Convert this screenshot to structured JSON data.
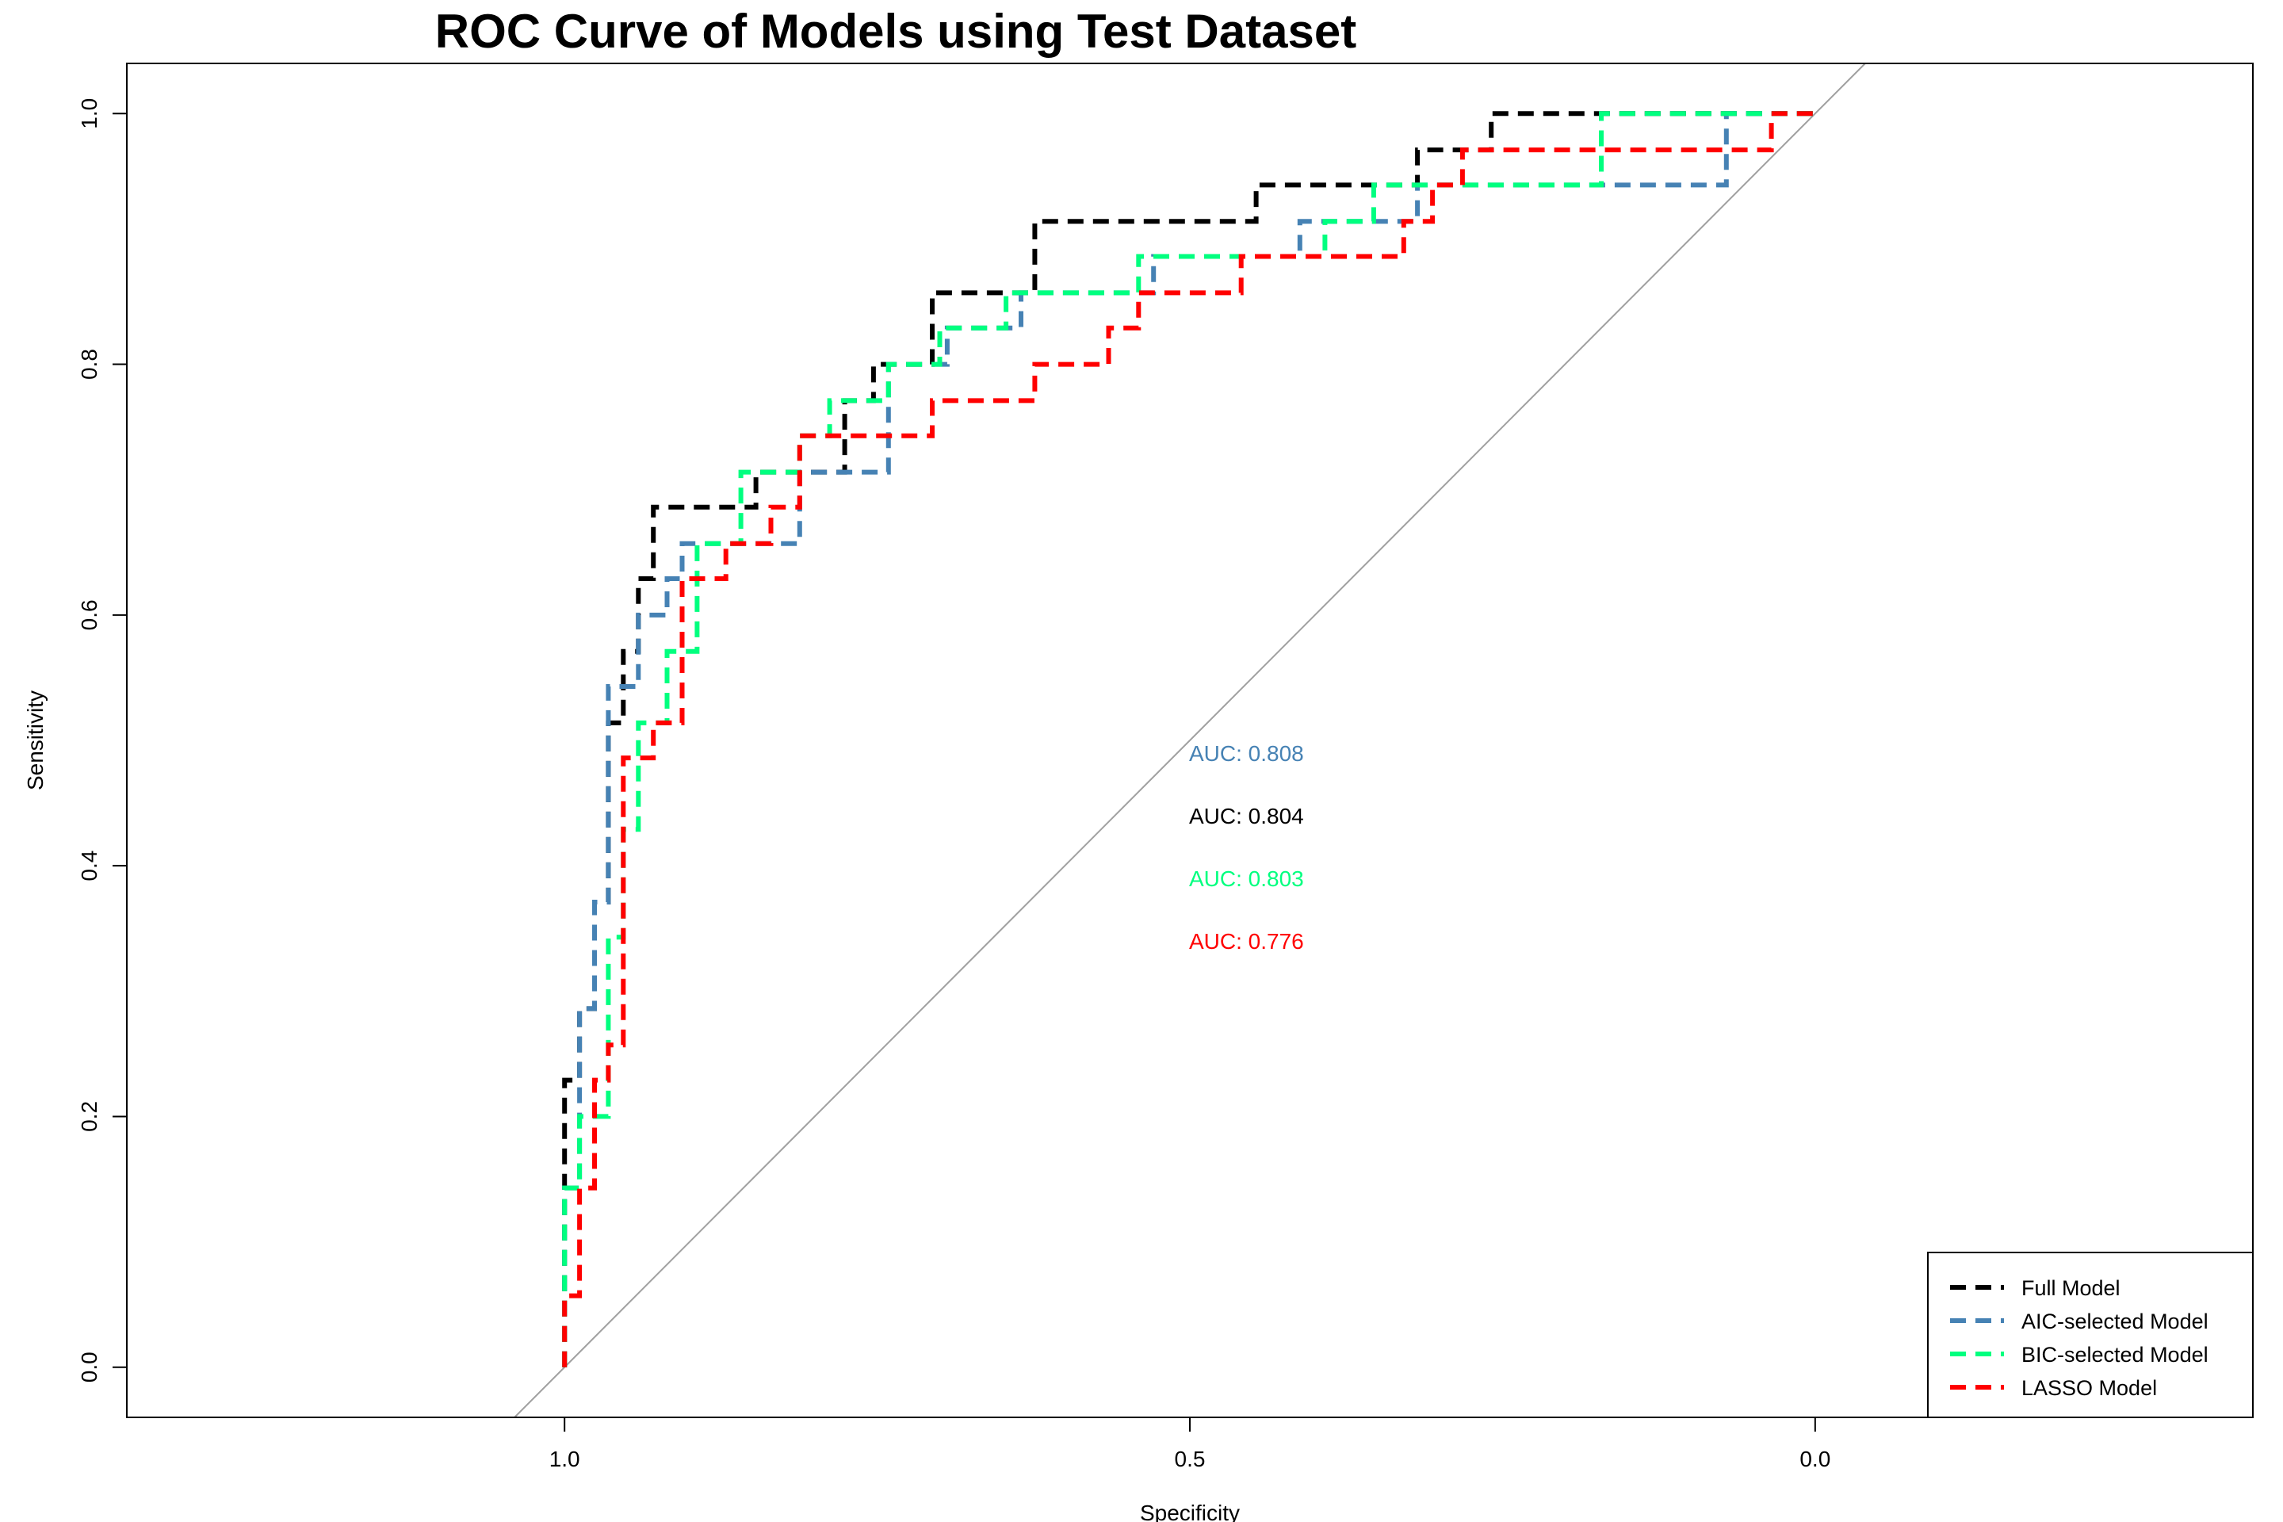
{
  "chart_data": {
    "type": "line",
    "title": "ROC Curve of Models using Test Dataset",
    "xlabel": "Specificity",
    "ylabel": "Sensitivity",
    "x_reversed": true,
    "xlim": [
      1.35,
      -0.35
    ],
    "ylim": [
      -0.04,
      1.04
    ],
    "x_ticks": [
      {
        "value": 1.0,
        "label": "1.0"
      },
      {
        "value": 0.5,
        "label": "0.5"
      },
      {
        "value": 0.0,
        "label": "0.0"
      }
    ],
    "y_ticks": [
      {
        "value": 0.0,
        "label": "0.0"
      },
      {
        "value": 0.2,
        "label": "0.2"
      },
      {
        "value": 0.4,
        "label": "0.4"
      },
      {
        "value": 0.6,
        "label": "0.6"
      },
      {
        "value": 0.8,
        "label": "0.8"
      },
      {
        "value": 1.0,
        "label": "1.0"
      }
    ],
    "reference_line": {
      "color": "#a0a0a0"
    },
    "grid": false,
    "legend_position": "bottom-right",
    "series": [
      {
        "name": "Full Model",
        "color": "#000000",
        "auc_text": "AUC: 0.804",
        "x": [
          1.0,
          1.0,
          0.988,
          0.988,
          0.976,
          0.976,
          0.965,
          0.965,
          0.953,
          0.953,
          0.941,
          0.941,
          0.929,
          0.929,
          0.847,
          0.847,
          0.776,
          0.776,
          0.753,
          0.753,
          0.706,
          0.706,
          0.624,
          0.624,
          0.576,
          0.576,
          0.447,
          0.447,
          0.318,
          0.318,
          0.259,
          0.259,
          0.0
        ],
        "y": [
          0.0,
          0.229,
          0.229,
          0.286,
          0.286,
          0.371,
          0.371,
          0.514,
          0.514,
          0.571,
          0.571,
          0.629,
          0.629,
          0.686,
          0.686,
          0.714,
          0.714,
          0.771,
          0.771,
          0.8,
          0.8,
          0.857,
          0.857,
          0.914,
          0.914,
          0.914,
          0.914,
          0.943,
          0.943,
          0.971,
          0.971,
          1.0,
          1.0
        ]
      },
      {
        "name": "AIC-selected Model",
        "color": "#4682b4",
        "auc_text": "AUC: 0.808",
        "x": [
          1.0,
          1.0,
          0.988,
          0.988,
          0.976,
          0.976,
          0.965,
          0.965,
          0.941,
          0.941,
          0.918,
          0.918,
          0.906,
          0.906,
          0.812,
          0.812,
          0.741,
          0.741,
          0.694,
          0.694,
          0.635,
          0.635,
          0.529,
          0.529,
          0.412,
          0.412,
          0.318,
          0.318,
          0.071,
          0.071,
          0.0
        ],
        "y": [
          0.0,
          0.143,
          0.143,
          0.286,
          0.286,
          0.371,
          0.371,
          0.543,
          0.543,
          0.6,
          0.6,
          0.629,
          0.629,
          0.657,
          0.657,
          0.714,
          0.714,
          0.8,
          0.8,
          0.829,
          0.829,
          0.857,
          0.857,
          0.886,
          0.886,
          0.914,
          0.914,
          0.943,
          0.943,
          1.0,
          1.0
        ]
      },
      {
        "name": "BIC-selected Model",
        "color": "#00ff7f",
        "auc_text": "AUC: 0.803",
        "x": [
          1.0,
          1.0,
          0.988,
          0.988,
          0.965,
          0.965,
          0.953,
          0.953,
          0.941,
          0.941,
          0.918,
          0.918,
          0.894,
          0.894,
          0.859,
          0.859,
          0.812,
          0.812,
          0.788,
          0.788,
          0.741,
          0.741,
          0.7,
          0.7,
          0.647,
          0.647,
          0.541,
          0.541,
          0.392,
          0.392,
          0.353,
          0.353,
          0.329,
          0.329,
          0.171,
          0.171,
          0.094,
          0.094,
          0.0
        ],
        "y": [
          0.0,
          0.143,
          0.143,
          0.2,
          0.2,
          0.343,
          0.343,
          0.429,
          0.429,
          0.514,
          0.514,
          0.571,
          0.571,
          0.657,
          0.657,
          0.714,
          0.714,
          0.743,
          0.743,
          0.771,
          0.771,
          0.8,
          0.8,
          0.829,
          0.829,
          0.857,
          0.857,
          0.886,
          0.886,
          0.914,
          0.914,
          0.943,
          0.943,
          0.943,
          0.943,
          1.0,
          1.0,
          1.0,
          1.0
        ]
      },
      {
        "name": "LASSO Model",
        "color": "#ff0000",
        "auc_text": "AUC: 0.776",
        "x": [
          1.0,
          1.0,
          0.988,
          0.988,
          0.976,
          0.976,
          0.965,
          0.965,
          0.953,
          0.953,
          0.929,
          0.929,
          0.906,
          0.906,
          0.871,
          0.871,
          0.835,
          0.835,
          0.812,
          0.812,
          0.753,
          0.753,
          0.706,
          0.706,
          0.624,
          0.624,
          0.565,
          0.565,
          0.541,
          0.541,
          0.459,
          0.459,
          0.329,
          0.329,
          0.306,
          0.306,
          0.282,
          0.282,
          0.259,
          0.259,
          0.035,
          0.035,
          0.0
        ],
        "y": [
          0.0,
          0.057,
          0.057,
          0.143,
          0.143,
          0.229,
          0.229,
          0.257,
          0.257,
          0.486,
          0.486,
          0.514,
          0.514,
          0.629,
          0.629,
          0.657,
          0.657,
          0.686,
          0.686,
          0.743,
          0.743,
          0.743,
          0.743,
          0.771,
          0.771,
          0.8,
          0.8,
          0.829,
          0.829,
          0.857,
          0.857,
          0.886,
          0.886,
          0.914,
          0.914,
          0.943,
          0.943,
          0.971,
          0.971,
          0.971,
          0.971,
          1.0,
          1.0
        ]
      }
    ]
  }
}
